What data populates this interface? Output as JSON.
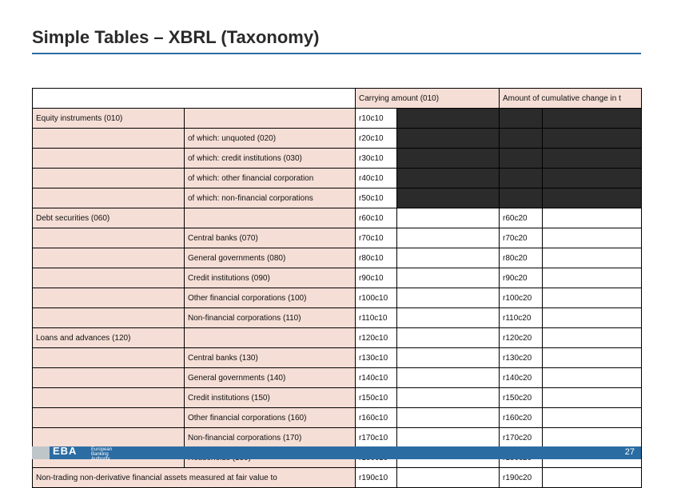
{
  "title": "Simple Tables – XBRL (Taxonomy)",
  "page_number": "27",
  "logo_text": "EBA",
  "logo_sub": "European\nBanking\nAuthority",
  "colors": {
    "accent": "#2b6ca3",
    "label_bg": "#f5ded6",
    "blocked_bg": "#2b2b2b",
    "stub_bg": "#bfc6c9"
  },
  "header": {
    "col_c10": "Carrying amount (010)",
    "col_c20": "Amount of cumulative change in t"
  },
  "rows": [
    {
      "group": "Equity instruments (010)",
      "sub": "",
      "c10": "r10c10",
      "c20": "blk"
    },
    {
      "group": "",
      "sub": "of which: unquoted (020)",
      "c10": "r20c10",
      "c20": "blk"
    },
    {
      "group": "",
      "sub": "of which: credit institutions (030)",
      "c10": "r30c10",
      "c20": "blk"
    },
    {
      "group": "",
      "sub": "of which: other financial corporation",
      "c10": "r40c10",
      "c20": "blk"
    },
    {
      "group": "",
      "sub": "of which: non-financial corporations",
      "c10": "r50c10",
      "c20": "blk"
    },
    {
      "group": "Debt securities (060)",
      "sub": "",
      "c10": "r60c10",
      "c20": "r60c20"
    },
    {
      "group": "",
      "sub": "Central banks (070)",
      "c10": "r70c10",
      "c20": "r70c20"
    },
    {
      "group": "",
      "sub": "General governments (080)",
      "c10": "r80c10",
      "c20": "r80c20"
    },
    {
      "group": "",
      "sub": "Credit institutions (090)",
      "c10": "r90c10",
      "c20": "r90c20"
    },
    {
      "group": "",
      "sub": "Other financial corporations (100)",
      "c10": "r100c10",
      "c20": "r100c20"
    },
    {
      "group": "",
      "sub": "Non-financial corporations (110)",
      "c10": "r110c10",
      "c20": "r110c20"
    },
    {
      "group": "Loans and advances (120)",
      "sub": "",
      "c10": "r120c10",
      "c20": "r120c20"
    },
    {
      "group": "",
      "sub": "Central banks (130)",
      "c10": "r130c10",
      "c20": "r130c20"
    },
    {
      "group": "",
      "sub": "General governments (140)",
      "c10": "r140c10",
      "c20": "r140c20"
    },
    {
      "group": "",
      "sub": "Credit institutions (150)",
      "c10": "r150c10",
      "c20": "r150c20"
    },
    {
      "group": "",
      "sub": "Other financial corporations (160)",
      "c10": "r160c10",
      "c20": "r160c20"
    },
    {
      "group": "",
      "sub": "Non-financial corporations (170)",
      "c10": "r170c10",
      "c20": "r170c20"
    },
    {
      "group": "",
      "sub": "Households (180)",
      "c10": "r180c10",
      "c20": "r180c20"
    },
    {
      "group": "Non-trading non-derivative financial assets measured at fair value to",
      "sub": "span",
      "c10": "r190c10",
      "c20": "r190c20"
    }
  ]
}
